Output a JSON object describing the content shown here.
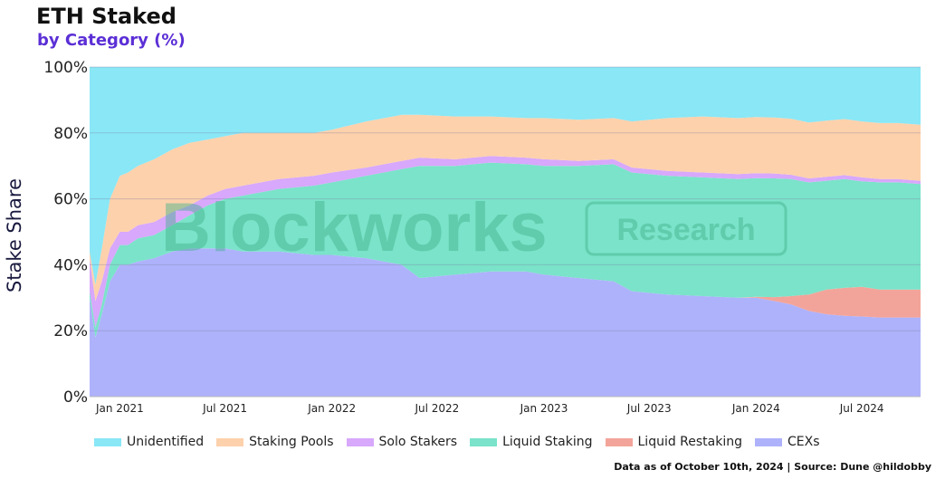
{
  "chart_data": {
    "type": "area",
    "stacked": true,
    "normalized_percent": true,
    "title": "ETH Staked",
    "subtitle": "by Category (%)",
    "xlabel": "",
    "ylabel": "Stake Share",
    "ylim": [
      0,
      100
    ],
    "y_ticks": [
      "0%",
      "20%",
      "40%",
      "60%",
      "80%",
      "100%"
    ],
    "x_ticks": [
      "Jan 2021",
      "Jul 2021",
      "Jan 2022",
      "Jul 2022",
      "Jan 2023",
      "Jul 2023",
      "Jan 2024",
      "Jul 2024"
    ],
    "grid": true,
    "legend_placement": "bottom",
    "x": [
      "2020-11-10",
      "2020-11-20",
      "2020-12-01",
      "2020-12-15",
      "2021-01-01",
      "2021-01-15",
      "2021-02-01",
      "2021-03-01",
      "2021-04-01",
      "2021-05-01",
      "2021-06-01",
      "2021-07-01",
      "2021-08-01",
      "2021-10-01",
      "2021-12-01",
      "2022-01-01",
      "2022-03-01",
      "2022-05-01",
      "2022-06-01",
      "2022-08-01",
      "2022-10-01",
      "2022-12-01",
      "2023-01-01",
      "2023-03-01",
      "2023-05-01",
      "2023-06-01",
      "2023-08-01",
      "2023-10-01",
      "2023-12-01",
      "2024-01-01",
      "2024-02-01",
      "2024-03-01",
      "2024-04-01",
      "2024-05-01",
      "2024-06-01",
      "2024-07-01",
      "2024-08-01",
      "2024-09-01",
      "2024-10-10"
    ],
    "series": [
      {
        "name": "CEXs",
        "color": "#aeb2fb",
        "values": [
          30,
          18,
          25,
          35,
          40,
          40,
          41,
          42,
          44,
          45,
          45,
          45,
          44,
          44,
          43,
          43,
          42,
          40,
          36,
          37,
          38,
          38,
          37,
          36,
          35,
          32,
          31,
          30.5,
          30,
          30,
          29,
          28,
          26,
          25,
          24.5,
          24.3,
          24,
          24,
          24
        ]
      },
      {
        "name": "Liquid Restaking",
        "color": "#f3a49a",
        "values": [
          0,
          0,
          0,
          0,
          0,
          0,
          0,
          0,
          0,
          0,
          0,
          0,
          0,
          0,
          0,
          0,
          0,
          0,
          0,
          0,
          0,
          0,
          0,
          0,
          0,
          0,
          0,
          0,
          0,
          0.3,
          1.2,
          2.5,
          5,
          7.5,
          8.5,
          9,
          8.5,
          8.5,
          8.5
        ]
      },
      {
        "name": "Liquid Staking",
        "color": "#7ae3c9",
        "values": [
          2,
          3,
          3,
          5,
          6,
          6,
          7,
          7,
          8,
          10,
          13,
          15,
          17,
          19,
          21,
          22,
          25,
          29,
          34,
          33,
          33,
          32.5,
          33,
          34,
          35.5,
          36,
          36,
          36,
          36,
          36,
          36,
          35.5,
          34,
          33,
          33,
          32,
          32.5,
          32.5,
          32
        ]
      },
      {
        "name": "Solo Stakers",
        "color": "#d7a8fb",
        "values": [
          10,
          8,
          7,
          5,
          4,
          4,
          4,
          4,
          4,
          3,
          3,
          3,
          3,
          3,
          3,
          3,
          2.5,
          2.5,
          2.5,
          2,
          2,
          2,
          2,
          1.5,
          1.5,
          1.5,
          1.5,
          1.5,
          1.5,
          1.5,
          1.5,
          1.3,
          1.2,
          1.2,
          1.2,
          1.2,
          1,
          1,
          1
        ]
      },
      {
        "name": "Staking Pools",
        "color": "#fdd1ac",
        "values": [
          2,
          5,
          10,
          15,
          17,
          18,
          18,
          19,
          19,
          19,
          17,
          16,
          16,
          14,
          13,
          13,
          14,
          14,
          13,
          13,
          12,
          12,
          12.5,
          12.5,
          12.5,
          14,
          16,
          17,
          17,
          17,
          17,
          17,
          17,
          17,
          17,
          17,
          17,
          17,
          17
        ]
      },
      {
        "name": "Unidentified",
        "color": "#89e7f6",
        "values": [
          56,
          66,
          55,
          40,
          33,
          32,
          30,
          28,
          25,
          23,
          22,
          21,
          20,
          20,
          20,
          19,
          16.5,
          14.5,
          14.5,
          15,
          15,
          15.5,
          15.5,
          16,
          15.5,
          16.5,
          15.5,
          15,
          15.5,
          15.2,
          15.3,
          15.7,
          16.8,
          16.3,
          15.8,
          16.5,
          17,
          17,
          17.5
        ]
      }
    ]
  },
  "legend": [
    {
      "label": "Unidentified",
      "color": "#89e7f6"
    },
    {
      "label": "Staking Pools",
      "color": "#fdd1ac"
    },
    {
      "label": "Solo Stakers",
      "color": "#d7a8fb"
    },
    {
      "label": "Liquid Staking",
      "color": "#7ae3c9"
    },
    {
      "label": "Liquid Restaking",
      "color": "#f3a49a"
    },
    {
      "label": "CEXs",
      "color": "#aeb2fb"
    }
  ],
  "watermark": {
    "brand": "Blockworks",
    "tag": "Research"
  },
  "source_note": "Data as of October 10th, 2024 | Source: Dune @hildobby"
}
